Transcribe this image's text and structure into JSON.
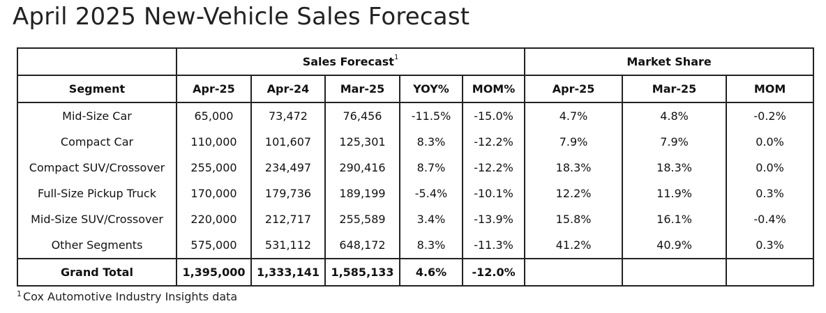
{
  "title": "April 2025 New-Vehicle Sales Forecast",
  "table": {
    "group_headers": {
      "sales_forecast": "Sales Forecast",
      "sales_forecast_note": "1",
      "market_share": "Market Share"
    },
    "columns": [
      "Segment",
      "Apr-25",
      "Apr-24",
      "Mar-25",
      "YOY%",
      "MOM%",
      "Apr-25",
      "Mar-25",
      "MOM"
    ],
    "rows": [
      [
        "Mid-Size Car",
        "65,000",
        "73,472",
        "76,456",
        "-11.5%",
        "-15.0%",
        "4.7%",
        "4.8%",
        "-0.2%"
      ],
      [
        "Compact Car",
        "110,000",
        "101,607",
        "125,301",
        "8.3%",
        "-12.2%",
        "7.9%",
        "7.9%",
        "0.0%"
      ],
      [
        "Compact SUV/Crossover",
        "255,000",
        "234,497",
        "290,416",
        "8.7%",
        "-12.2%",
        "18.3%",
        "18.3%",
        "0.0%"
      ],
      [
        "Full-Size Pickup Truck",
        "170,000",
        "179,736",
        "189,199",
        "-5.4%",
        "-10.1%",
        "12.2%",
        "11.9%",
        "0.3%"
      ],
      [
        "Mid-Size SUV/Crossover",
        "220,000",
        "212,717",
        "255,589",
        "3.4%",
        "-13.9%",
        "15.8%",
        "16.1%",
        "-0.4%"
      ],
      [
        "Other Segments",
        "575,000",
        "531,112",
        "648,172",
        "8.3%",
        "-11.3%",
        "41.2%",
        "40.9%",
        "0.3%"
      ]
    ],
    "total": [
      "Grand Total",
      "1,395,000",
      "1,333,141",
      "1,585,133",
      "4.6%",
      "-12.0%",
      "",
      "",
      ""
    ]
  },
  "footnote": {
    "mark": "1",
    "text": "Cox Automotive Industry Insights data"
  }
}
